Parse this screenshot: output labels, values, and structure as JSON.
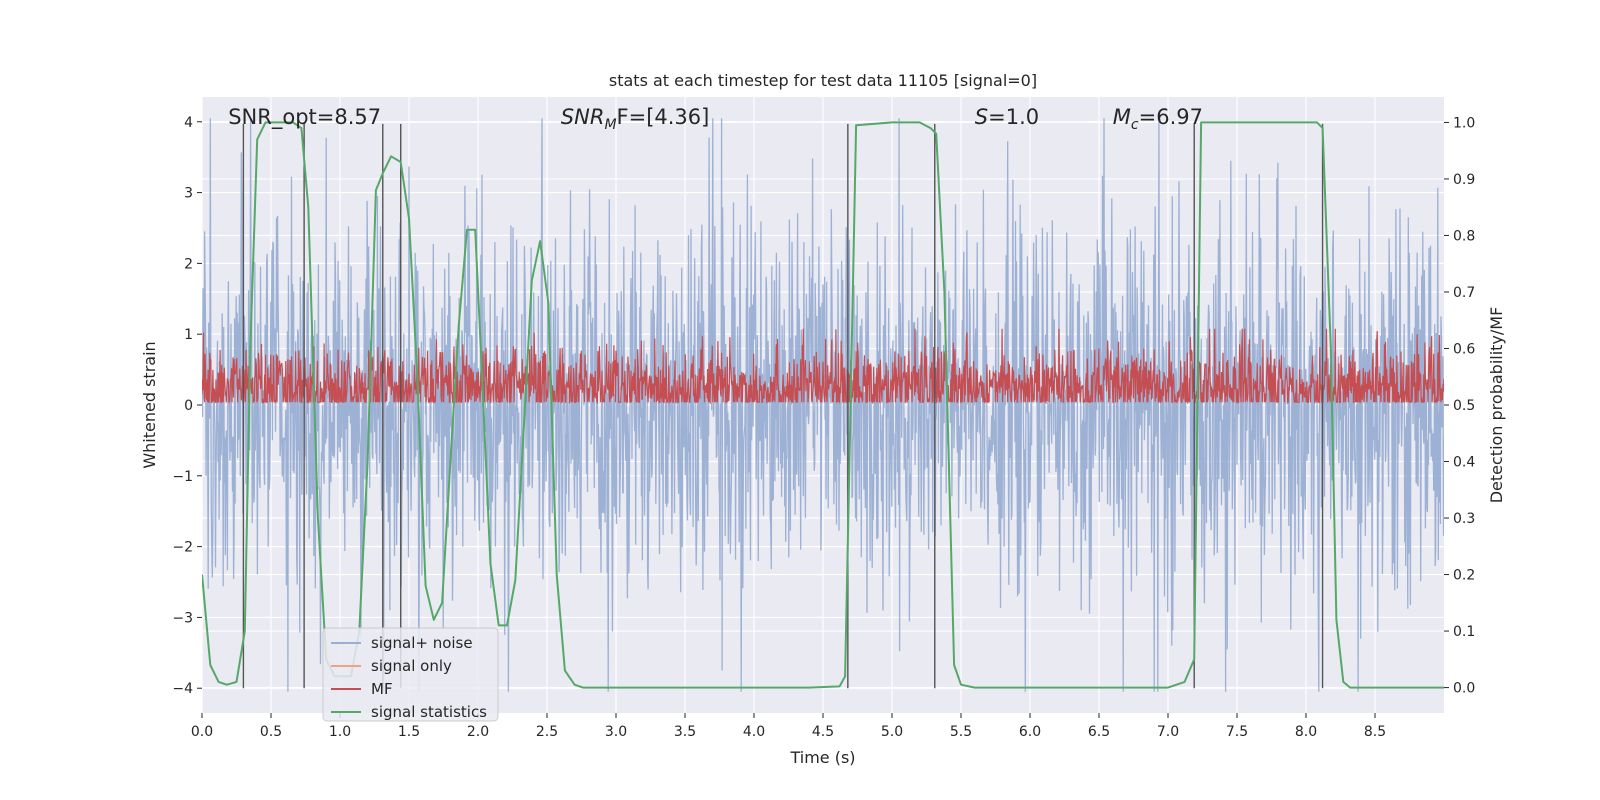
{
  "chart_data": {
    "type": "line",
    "title": "stats at each timestep for test data 11105 [signal=0]",
    "xlabel": "Time (s)",
    "ylabel_left": "Whitened strain",
    "ylabel_right": "Detection probability/MF",
    "xlim": [
      0,
      9.0
    ],
    "ylim_left": [
      -4.35,
      4.35
    ],
    "ylim_right": [
      -0.045,
      1.045
    ],
    "x_ticks": [
      "0.0",
      "0.5",
      "1.0",
      "1.5",
      "2.0",
      "2.5",
      "3.0",
      "3.5",
      "4.0",
      "4.5",
      "5.0",
      "5.5",
      "6.0",
      "6.5",
      "7.0",
      "7.5",
      "8.0",
      "8.5"
    ],
    "y_ticks_left": [
      "−4",
      "−3",
      "−2",
      "−1",
      "0",
      "1",
      "2",
      "3",
      "4"
    ],
    "y_ticks_right": [
      "0.0",
      "0.1",
      "0.2",
      "0.3",
      "0.4",
      "0.5",
      "0.6",
      "0.7",
      "0.8",
      "0.9",
      "1.0"
    ],
    "grid": true,
    "annotations": [
      {
        "prefix": "SNR_opt",
        "sub": "",
        "suffix": "=8.57",
        "x": 0.19,
        "italic": false
      },
      {
        "prefix": "SNR",
        "sub": "M",
        "suffix": "F=[4.36]",
        "x": 2.6,
        "italic": true
      },
      {
        "prefix": "S",
        "sub": "",
        "suffix": "=1.0",
        "x": 5.6,
        "italic": true
      },
      {
        "prefix": "M",
        "sub": "c",
        "suffix": "=6.97",
        "x": 6.6,
        "italic": true
      }
    ],
    "vertical_lines": [
      0.3,
      0.74,
      1.31,
      1.44,
      4.68,
      5.31,
      7.19,
      8.12
    ],
    "series": [
      {
        "name": "signal+ noise",
        "color": "#99aed3",
        "kind": "noise",
        "amplitude": 1.0
      },
      {
        "name": "signal only",
        "color": "#f2a283",
        "kind": "none"
      },
      {
        "name": "MF",
        "color": "#c44e52",
        "kind": "mf",
        "axis": "right",
        "center": 0.53,
        "spread": 0.035
      },
      {
        "name": "signal statistics",
        "color": "#55a868",
        "kind": "line",
        "axis": "right",
        "x": [
          0.0,
          0.06,
          0.12,
          0.18,
          0.25,
          0.31,
          0.35,
          0.4,
          0.46,
          0.53,
          0.6,
          0.66,
          0.72,
          0.77,
          0.84,
          0.9,
          0.96,
          1.02,
          1.08,
          1.14,
          1.2,
          1.26,
          1.31,
          1.37,
          1.44,
          1.5,
          1.56,
          1.62,
          1.68,
          1.74,
          1.8,
          1.86,
          1.92,
          1.98,
          2.03,
          2.09,
          2.15,
          2.21,
          2.27,
          2.33,
          2.39,
          2.45,
          2.51,
          2.57,
          2.63,
          2.7,
          2.76,
          2.82,
          2.9,
          3.2,
          3.6,
          4.0,
          4.4,
          4.62,
          4.66,
          4.7,
          4.74,
          5.0,
          5.2,
          5.28,
          5.32,
          5.38,
          5.45,
          5.5,
          5.6,
          6.0,
          6.5,
          7.0,
          7.12,
          7.19,
          7.24,
          7.6,
          8.0,
          8.08,
          8.12,
          8.18,
          8.22,
          8.27,
          8.32,
          8.6,
          9.0
        ],
        "y": [
          0.2,
          0.04,
          0.01,
          0.005,
          0.01,
          0.1,
          0.6,
          0.97,
          1.0,
          1.0,
          1.0,
          1.0,
          0.99,
          0.85,
          0.3,
          0.05,
          0.02,
          0.02,
          0.02,
          0.1,
          0.4,
          0.88,
          0.91,
          0.94,
          0.93,
          0.83,
          0.55,
          0.18,
          0.12,
          0.15,
          0.4,
          0.64,
          0.81,
          0.81,
          0.55,
          0.22,
          0.11,
          0.11,
          0.19,
          0.45,
          0.72,
          0.79,
          0.68,
          0.2,
          0.03,
          0.005,
          0.0,
          0.0,
          0.0,
          0.0,
          0.0,
          0.0,
          0.0,
          0.002,
          0.02,
          0.5,
          0.995,
          1.0,
          1.0,
          0.99,
          0.98,
          0.7,
          0.04,
          0.005,
          0.0,
          0.0,
          0.0,
          0.0,
          0.01,
          0.05,
          1.0,
          1.0,
          1.0,
          1.0,
          0.99,
          0.6,
          0.12,
          0.01,
          0.0,
          0.0,
          0.0
        ]
      }
    ],
    "legend_position": "lower-left"
  }
}
